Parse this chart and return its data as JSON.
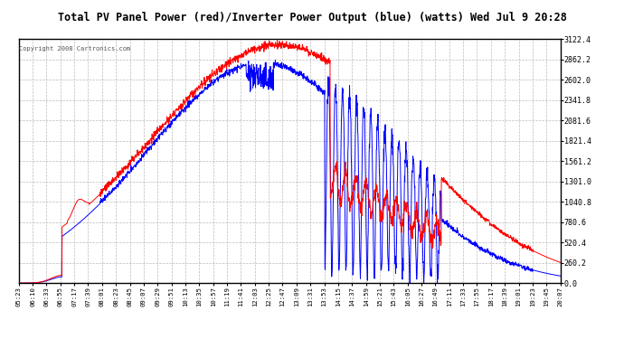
{
  "title": "Total PV Panel Power (red)/Inverter Power Output (blue) (watts) Wed Jul 9 20:28",
  "copyright": "Copyright 2008 Cartronics.com",
  "y_min": 0.0,
  "y_max": 3122.4,
  "y_ticks": [
    0.0,
    260.2,
    520.4,
    780.6,
    1040.8,
    1301.0,
    1561.2,
    1821.4,
    2081.6,
    2341.8,
    2602.0,
    2862.2,
    3122.4
  ],
  "x_labels": [
    "05:23",
    "06:10",
    "06:33",
    "06:55",
    "07:17",
    "07:39",
    "08:01",
    "08:23",
    "08:45",
    "09:07",
    "09:29",
    "09:51",
    "10:13",
    "10:35",
    "10:57",
    "11:19",
    "11:41",
    "12:03",
    "12:25",
    "12:47",
    "13:09",
    "13:31",
    "13:53",
    "14:15",
    "14:37",
    "14:59",
    "15:21",
    "15:43",
    "16:05",
    "16:27",
    "16:49",
    "17:11",
    "17:33",
    "17:55",
    "18:17",
    "18:39",
    "19:01",
    "19:23",
    "19:45",
    "20:07"
  ],
  "background_color": "#ffffff",
  "plot_bg_color": "#ffffff",
  "grid_color": "#aaaaaa",
  "red_line_color": "#ff0000",
  "blue_line_color": "#0000ff",
  "title_color": "#000000",
  "tick_color": "#000000",
  "border_color": "#000000",
  "copyright_color": "#555555"
}
